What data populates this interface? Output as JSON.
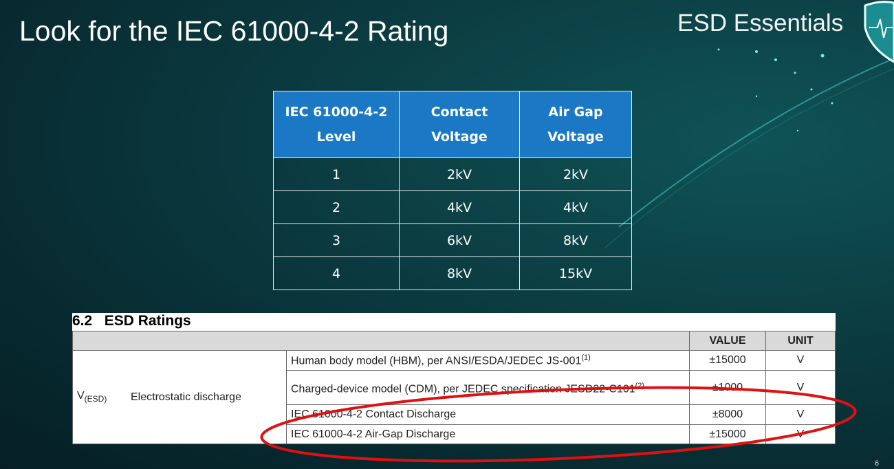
{
  "slide": {
    "title": "Look for the IEC 61000-4-2 Rating",
    "brand": "ESD Essentials",
    "logo_icon": "shield-heartbeat-icon",
    "page_number": "6",
    "accent_color": "#1a78c4",
    "highlight_color": "#e01010"
  },
  "levels_table": {
    "headers": [
      "IEC 61000-4-2 Level",
      "Contact Voltage",
      "Air Gap Voltage"
    ],
    "rows": [
      [
        "1",
        "2kV",
        "2kV"
      ],
      [
        "2",
        "4kV",
        "4kV"
      ],
      [
        "3",
        "6kV",
        "8kV"
      ],
      [
        "4",
        "8kV",
        "15kV"
      ]
    ]
  },
  "esd_ratings": {
    "section_title": "6.2   ESD Ratings",
    "col_value": "VALUE",
    "col_unit": "UNIT",
    "symbol": "V",
    "symbol_sub": "(ESD)",
    "parameter": "Electrostatic discharge",
    "rows": [
      {
        "condition": "Human body model (HBM), per ANSI/ESDA/JEDEC JS-001",
        "note": "(1)",
        "value": "±15000",
        "unit": "V"
      },
      {
        "condition": "Charged-device model (CDM), per JEDEC specification JESD22-C101",
        "note": "(2)",
        "value": "±1000",
        "unit": "V"
      },
      {
        "condition": "IEC 61000-4-2 Contact Discharge",
        "note": "",
        "value": "±8000",
        "unit": "V"
      },
      {
        "condition": "IEC 61000-4-2 Air-Gap Discharge",
        "note": "",
        "value": "±15000",
        "unit": "V"
      }
    ]
  }
}
